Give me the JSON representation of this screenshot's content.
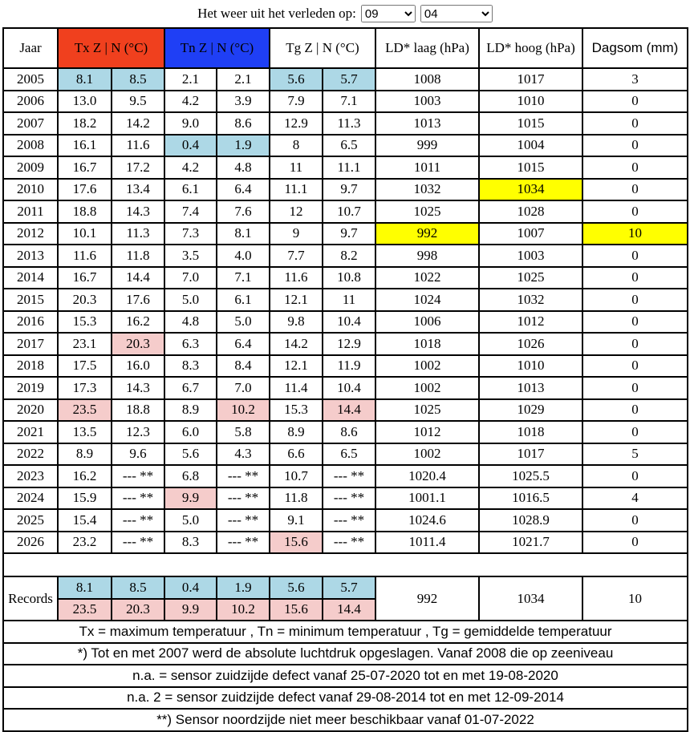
{
  "header": {
    "title": "Het weer uit het verleden op:",
    "month": "09",
    "day": "04"
  },
  "table": {
    "columns": [
      "Jaar",
      {
        "text": "Tx Z | N (°C)",
        "bg": "#f0401e"
      },
      {
        "text": "Tn Z | N (°C)",
        "bg": "#1f3ff5"
      },
      "Tg Z | N (°C)",
      "LD* laag (hPa)",
      "LD* hoog (hPa)",
      "Dagsom (mm)"
    ],
    "rows": [
      [
        "2005",
        {
          "text": "8.1",
          "bg": "#add8e6"
        },
        {
          "text": "8.5",
          "bg": "#add8e6"
        },
        "2.1",
        "2.1",
        {
          "text": "5.6",
          "bg": "#add8e6"
        },
        {
          "text": "5.7",
          "bg": "#add8e6"
        },
        "1008",
        "1017",
        "3"
      ],
      [
        "2006",
        "13.0",
        "9.5",
        "4.2",
        "3.9",
        "7.9",
        "7.1",
        "1003",
        "1010",
        "0"
      ],
      [
        "2007",
        "18.2",
        "14.2",
        "9.0",
        "8.6",
        "12.9",
        "11.3",
        "1013",
        "1015",
        "0"
      ],
      [
        "2008",
        "16.1",
        "11.6",
        {
          "text": "0.4",
          "bg": "#add8e6"
        },
        {
          "text": "1.9",
          "bg": "#add8e6"
        },
        "8",
        "6.5",
        "999",
        "1004",
        "0"
      ],
      [
        "2009",
        "16.7",
        "17.2",
        "4.2",
        "4.8",
        "11",
        "11.1",
        "1011",
        "1015",
        "0"
      ],
      [
        "2010",
        "17.6",
        "13.4",
        "6.1",
        "6.4",
        "11.1",
        "9.7",
        "1032",
        {
          "text": "1034",
          "bg": "#ffff00"
        },
        "0"
      ],
      [
        "2011",
        "18.8",
        "14.3",
        "7.4",
        "7.6",
        "12",
        "10.7",
        "1025",
        "1028",
        "0"
      ],
      [
        "2012",
        "10.1",
        "11.3",
        "7.3",
        "8.1",
        "9",
        "9.7",
        {
          "text": "992",
          "bg": "#ffff00"
        },
        "1007",
        {
          "text": "10",
          "bg": "#ffff00"
        }
      ],
      [
        "2013",
        "11.6",
        "11.8",
        "3.5",
        "4.0",
        "7.7",
        "8.2",
        "998",
        "1003",
        "0"
      ],
      [
        "2014",
        "16.7",
        "14.4",
        "7.0",
        "7.1",
        "11.6",
        "10.8",
        "1022",
        "1025",
        "0"
      ],
      [
        "2015",
        "20.3",
        "17.6",
        "5.0",
        "6.1",
        "12.1",
        "11",
        "1024",
        "1032",
        "0"
      ],
      [
        "2016",
        "15.3",
        "16.2",
        "4.8",
        "5.0",
        "9.8",
        "10.4",
        "1006",
        "1012",
        "0"
      ],
      [
        "2017",
        "23.1",
        {
          "text": "20.3",
          "bg": "#f5cccb"
        },
        "6.3",
        "6.4",
        "14.2",
        "12.9",
        "1018",
        "1026",
        "0"
      ],
      [
        "2018",
        "17.5",
        "16.0",
        "8.3",
        "8.4",
        "12.1",
        "11.9",
        "1002",
        "1010",
        "0"
      ],
      [
        "2019",
        "17.3",
        "14.3",
        "6.7",
        "7.0",
        "11.4",
        "10.4",
        "1002",
        "1013",
        "0"
      ],
      [
        "2020",
        {
          "text": "23.5",
          "bg": "#f5cccb"
        },
        "18.8",
        "8.9",
        {
          "text": "10.2",
          "bg": "#f5cccb"
        },
        "15.3",
        {
          "text": "14.4",
          "bg": "#f5cccb"
        },
        "1025",
        "1029",
        "0"
      ],
      [
        "2021",
        "13.5",
        "12.3",
        "6.0",
        "5.8",
        "8.9",
        "8.6",
        "1012",
        "1018",
        "0"
      ],
      [
        "2022",
        "8.9",
        "9.6",
        "5.6",
        "4.3",
        "6.6",
        "6.5",
        "1002",
        "1017",
        "5"
      ],
      [
        "2023",
        "16.2",
        "--- **",
        "6.8",
        "--- **",
        "10.7",
        "--- **",
        "1020.4",
        "1025.5",
        "0"
      ],
      [
        "2024",
        "15.9",
        "--- **",
        {
          "text": "9.9",
          "bg": "#f5cccb"
        },
        "--- **",
        "11.8",
        "--- **",
        "1001.1",
        "1016.5",
        "4"
      ],
      [
        "2025",
        "15.4",
        "--- **",
        "5.0",
        "--- **",
        "9.1",
        "--- **",
        "1024.6",
        "1028.9",
        "0"
      ],
      [
        "2026",
        "23.2",
        "--- **",
        "8.3",
        "--- **",
        {
          "text": "15.6",
          "bg": "#f5cccb"
        },
        "--- **",
        "1011.4",
        "1021.7",
        "0"
      ]
    ],
    "records": {
      "label": "Records",
      "low_color": "#add8e6",
      "high_color": "#f5cccb",
      "low": [
        "8.1",
        "8.5",
        "0.4",
        "1.9",
        "5.6",
        "5.7"
      ],
      "high": [
        "23.5",
        "20.3",
        "9.9",
        "10.2",
        "15.6",
        "14.4"
      ],
      "ld_low": "992",
      "ld_high": "1034",
      "dagsom": "10"
    }
  },
  "notes": [
    "Tx = maximum temperatuur , Tn = minimum temperatuur , Tg = gemiddelde temperatuur",
    "*) Tot en met 2007 werd de absolute luchtdruk opgeslagen. Vanaf 2008 die op zeeniveau",
    "n.a. = sensor zuidzijde defect vanaf 25-07-2020 tot en met 19-08-2020",
    "n.a. 2 = sensor zuidzijde defect vanaf 29-08-2014 tot en met 12-09-2014",
    "**) Sensor noordzijde niet meer beschikbaar vanaf 01-07-2022"
  ]
}
